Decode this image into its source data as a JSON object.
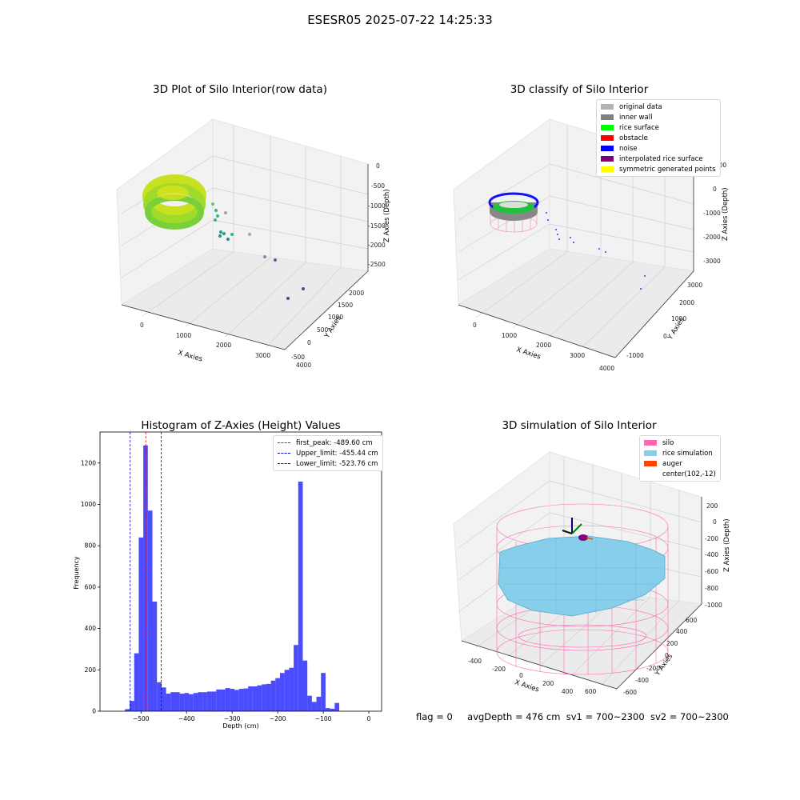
{
  "suptitle": "ESESR05 2025-07-22 14:25:33",
  "footer": {
    "flag": "flag = 0",
    "avg_depth": "avgDepth = 476 cm",
    "sv1": "sv1 = 700~2300",
    "sv2": "sv2 = 700~2300"
  },
  "colors": {
    "hist_bar": "#0000ff",
    "first_peak": "#ff0000",
    "limits": "#0000cc",
    "silo": "#ff69b4",
    "rice_simulation": "#87ceeb",
    "auger": "#ff4500"
  },
  "chart_data": [
    {
      "type": "scatter",
      "projection": "3d",
      "title": "3D Plot of Silo Interior(row data)",
      "xlabel": "X Axies",
      "ylabel": "Y Axies",
      "zlabel": "Z Axies (Depth)",
      "x_ticks": [
        "0",
        "1000",
        "2000",
        "3000",
        "4000"
      ],
      "y_ticks": [
        "-500",
        "0",
        "500",
        "1000",
        "1500",
        "2000"
      ],
      "z_ticks": [
        "0",
        "-500",
        "-1000",
        "-1500",
        "-2000",
        "-2500"
      ],
      "colormap": "viridis (by depth)",
      "grid": true
    },
    {
      "type": "scatter",
      "projection": "3d",
      "title": "3D classify of Silo Interior",
      "xlabel": "X Axies",
      "ylabel": "Y Axies",
      "zlabel": "Z Axies (Depth)",
      "x_ticks": [
        "0",
        "1000",
        "2000",
        "3000",
        "4000"
      ],
      "y_ticks": [
        "-1000",
        "0",
        "1000",
        "2000",
        "3000"
      ],
      "z_ticks": [
        "1000",
        "0",
        "-1000",
        "-2000",
        "-3000"
      ],
      "legend_position": "top-right",
      "legend": [
        {
          "label": "original data",
          "color": "#b3b3b3"
        },
        {
          "label": "inner wall",
          "color": "#808080"
        },
        {
          "label": "rice surface",
          "color": "#00ff00"
        },
        {
          "label": "obstacle",
          "color": "#ff0000"
        },
        {
          "label": "noise",
          "color": "#0000ff"
        },
        {
          "label": "interpolated rice surface",
          "color": "#800080"
        },
        {
          "label": "symmetric generated points",
          "color": "#ffff00"
        }
      ],
      "grid": true
    },
    {
      "type": "bar",
      "title": "Histogram of Z-Axies (Height) Values",
      "xlabel": "Depth (cm)",
      "ylabel": "Frequency",
      "xlim": [
        -590,
        28
      ],
      "ylim": [
        0,
        1350
      ],
      "x_ticks": [
        -500,
        -400,
        -300,
        -200,
        -100,
        0
      ],
      "y_ticks": [
        0,
        200,
        400,
        600,
        800,
        1000,
        1200
      ],
      "bin_edges_start": -535,
      "bin_width": 10,
      "values": [
        10,
        50,
        280,
        840,
        1285,
        970,
        530,
        140,
        115,
        85,
        92,
        92,
        85,
        88,
        82,
        88,
        92,
        92,
        95,
        95,
        105,
        105,
        112,
        108,
        103,
        108,
        110,
        120,
        120,
        125,
        130,
        132,
        148,
        160,
        185,
        200,
        210,
        320,
        1110,
        245,
        75,
        45,
        70,
        185,
        15,
        12,
        40
      ],
      "vlines": [
        {
          "label": "first_peak: -489.60 cm",
          "x": -489.6,
          "color": "#ff0000"
        },
        {
          "label": "Upper_limit: -455.44 cm",
          "x": -455.44,
          "color": "#0000cc"
        },
        {
          "label": "Lower_limit: -523.76 cm",
          "x": -523.76,
          "color": "#0000cc"
        }
      ],
      "legend_position": "top-right"
    },
    {
      "type": "area",
      "projection": "3d",
      "title": "3D simulation of Silo Interior",
      "xlabel": "X Axies",
      "ylabel": "Y Axies",
      "zlabel": "Z Axies (Depth)",
      "x_ticks": [
        "-400",
        "-200",
        "0",
        "200",
        "400",
        "600"
      ],
      "y_ticks": [
        "-600",
        "-400",
        "-200",
        "0",
        "200",
        "400",
        "600"
      ],
      "z_ticks": [
        "200",
        "0",
        "-200",
        "-400",
        "-600",
        "-800",
        "-1000"
      ],
      "legend_position": "top-right",
      "legend": [
        {
          "label": "silo",
          "color": "#ff69b4"
        },
        {
          "label": "rice simulation",
          "color": "#87ceeb"
        },
        {
          "label": "auger",
          "color": "#ff4500"
        },
        {
          "label": "center(102,-12)",
          "color": ""
        }
      ],
      "grid": true
    }
  ]
}
